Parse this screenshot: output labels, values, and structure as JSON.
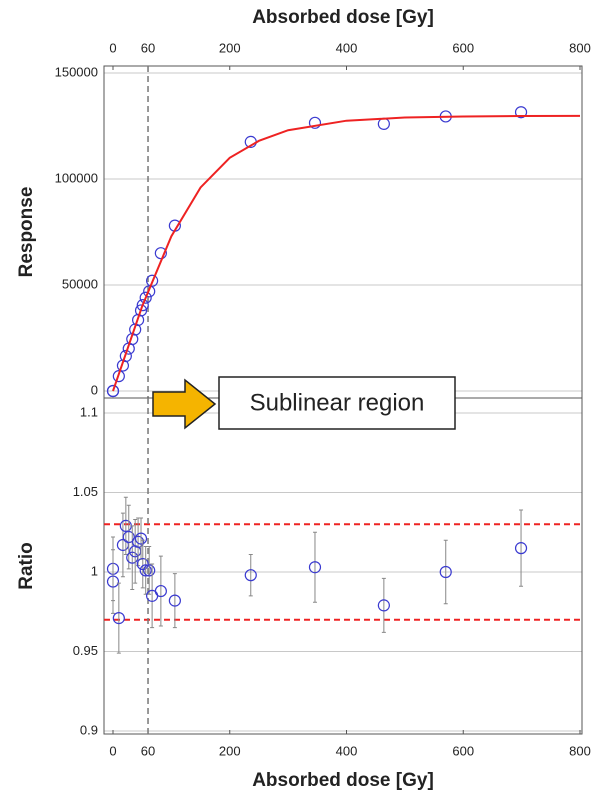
{
  "chart_data": [
    {
      "type": "scatter",
      "x_axis_position": "top",
      "x_label": "Absorbed dose [Gy]",
      "y_label": "Response",
      "annotation": "Sublinear region",
      "vline": 60,
      "vline_color": "#777777",
      "xlim": [
        0,
        800
      ],
      "xticks": [
        0,
        60,
        200,
        400,
        600,
        800
      ],
      "ylim": [
        0,
        150000
      ],
      "yticks": [
        0,
        50000,
        100000,
        150000
      ],
      "grid": true,
      "series": [
        {
          "marker": "circle",
          "color": "#3a3ad0",
          "x": [
            0,
            0,
            10,
            17,
            22,
            27,
            33,
            38,
            43,
            48,
            51,
            56,
            62,
            67,
            82,
            106,
            236,
            346,
            464,
            570,
            699
          ],
          "values": [
            0,
            0,
            7000,
            12000,
            16500,
            20000,
            24500,
            29000,
            33500,
            38000,
            40500,
            44000,
            47000,
            52000,
            65000,
            78000,
            117500,
            126500,
            126000,
            129500,
            131500
          ]
        },
        {
          "marker": "line",
          "color": "#ee2222",
          "x": [
            0,
            50,
            100,
            150,
            200,
            250,
            300,
            400,
            500,
            600,
            700,
            800
          ],
          "values": [
            0,
            40000,
            73000,
            96000,
            110000,
            118000,
            123000,
            127500,
            129000,
            129500,
            129700,
            129800
          ]
        }
      ]
    },
    {
      "type": "scatter",
      "x_axis_position": "bottom",
      "x_label": "Absorbed dose [Gy]",
      "y_label": "Ratio",
      "vline": 60,
      "vline_color": "#777777",
      "hlines": [
        1.03,
        0.97
      ],
      "hline_color": "#ee2222",
      "xlim": [
        0,
        800
      ],
      "xticks": [
        0,
        60,
        200,
        400,
        600,
        800
      ],
      "ylim": [
        0.9,
        1.1
      ],
      "yticks": [
        0.9,
        0.95,
        1,
        1.05,
        1.1
      ],
      "grid": true,
      "series": [
        {
          "marker": "circle",
          "color": "#3a3ad0",
          "error_color": "#888888",
          "x": [
            0,
            0,
            10,
            17,
            22,
            27,
            33,
            38,
            43,
            48,
            51,
            56,
            62,
            67,
            82,
            106,
            236,
            346,
            464,
            570,
            699
          ],
          "values": [
            1.002,
            0.994,
            0.971,
            1.017,
            1.029,
            1.022,
            1.009,
            1.013,
            1.019,
            1.021,
            1.005,
            1.001,
            1.001,
            0.985,
            0.988,
            0.982,
            0.998,
            1.003,
            0.979,
            1.0,
            1.015
          ],
          "errors": [
            0.02,
            0.02,
            0.022,
            0.02,
            0.018,
            0.02,
            0.02,
            0.02,
            0.015,
            0.013,
            0.015,
            0.015,
            0.015,
            0.02,
            0.022,
            0.017,
            0.013,
            0.022,
            0.017,
            0.02,
            0.024
          ]
        }
      ]
    }
  ]
}
